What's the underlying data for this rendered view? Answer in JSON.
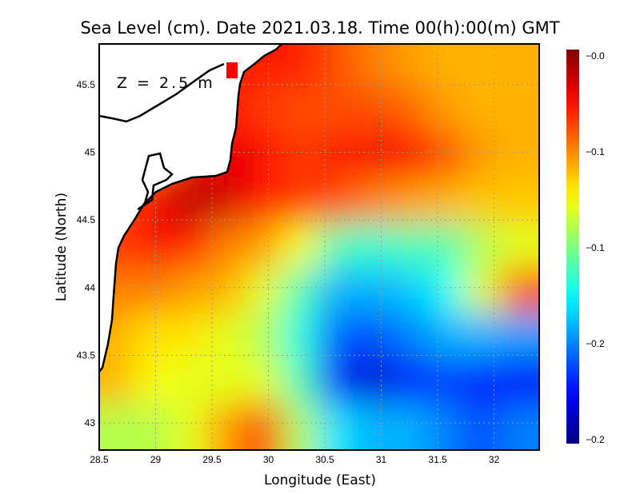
{
  "title": "Sea Level (cm). Date 2021.03.18. Time 00(h):00(m) GMT",
  "annotation": "Z = 2.5 m",
  "chart_data": {
    "type": "heatmap",
    "xlabel": "Longitude (East)",
    "ylabel": "Latitude (North)",
    "xlim": [
      28.5,
      32.4
    ],
    "ylim": [
      42.8,
      45.8
    ],
    "xticks": [
      "28.5",
      "29",
      "29.5",
      "30",
      "30.5",
      "31",
      "31.5",
      "32"
    ],
    "xtick_values": [
      28.5,
      29,
      29.5,
      30,
      30.5,
      31,
      31.5,
      32
    ],
    "yticks": [
      "45.5",
      "45",
      "44.5",
      "44",
      "43.5",
      "43"
    ],
    "ytick_values": [
      45.5,
      45,
      44.5,
      44,
      43.5,
      43
    ],
    "grid": true,
    "colormap": "jet",
    "colorbar": {
      "range": [
        -0.2,
        0.0
      ],
      "labels": [
        "-0.0",
        "-0.1",
        "-0.1",
        "-0.2",
        "-0.2"
      ],
      "position": "right"
    },
    "grid_lat": [
      45.7,
      45.4,
      45.1,
      44.8,
      44.4,
      44.0,
      43.7,
      43.3,
      42.95
    ],
    "grid_lon": [
      28.66,
      28.99,
      29.31,
      29.64,
      29.96,
      30.29,
      30.61,
      30.94,
      31.26,
      31.59,
      31.91,
      32.24
    ],
    "values": [
      [
        null,
        null,
        null,
        -0.03,
        -0.03,
        -0.03,
        -0.04,
        -0.05,
        -0.056,
        -0.06,
        -0.06,
        -0.06
      ],
      [
        null,
        null,
        -0.03,
        -0.03,
        -0.036,
        -0.04,
        -0.04,
        -0.04,
        -0.044,
        -0.056,
        -0.06,
        -0.06
      ],
      [
        null,
        null,
        -0.03,
        -0.02,
        -0.026,
        -0.036,
        -0.03,
        -0.024,
        -0.024,
        -0.04,
        -0.056,
        -0.06
      ],
      [
        -0.04,
        -0.024,
        -0.01,
        -0.016,
        -0.03,
        -0.036,
        -0.04,
        -0.05,
        -0.056,
        -0.06,
        -0.064,
        -0.064
      ],
      [
        -0.036,
        -0.03,
        -0.03,
        -0.05,
        -0.056,
        -0.076,
        -0.11,
        -0.116,
        -0.11,
        -0.11,
        -0.09,
        -0.08
      ],
      [
        -0.05,
        -0.05,
        -0.056,
        -0.06,
        -0.08,
        -0.11,
        -0.14,
        -0.14,
        -0.136,
        -0.124,
        -0.08,
        -0.04
      ],
      [
        -0.06,
        -0.07,
        -0.07,
        -0.08,
        -0.09,
        -0.12,
        -0.156,
        -0.16,
        -0.15,
        -0.14,
        -0.14,
        -0.144
      ],
      [
        -0.06,
        -0.076,
        -0.08,
        -0.08,
        -0.08,
        -0.11,
        -0.17,
        -0.184,
        -0.17,
        -0.164,
        -0.17,
        -0.176
      ],
      [
        -0.09,
        -0.09,
        -0.08,
        -0.056,
        -0.036,
        -0.09,
        -0.13,
        -0.14,
        -0.14,
        -0.15,
        -0.16,
        -0.15
      ]
    ]
  }
}
